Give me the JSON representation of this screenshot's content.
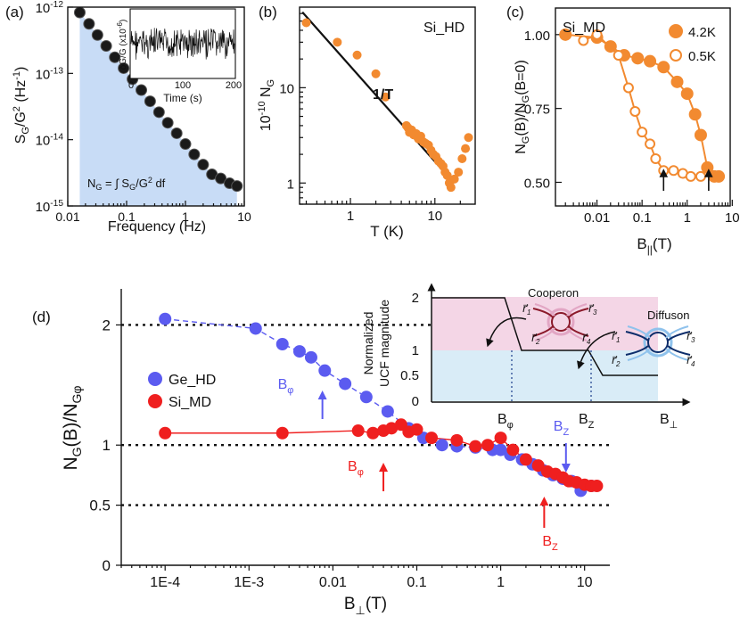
{
  "chart_data": [
    {
      "panel": "a",
      "type": "scatter",
      "panel_label": "(a)",
      "title": "",
      "xlabel": "Frequency (Hz)",
      "ylabel": "S_G/G^2 (Hz^-1)",
      "xscale": "log",
      "yscale": "log",
      "xlim": [
        0.01,
        10
      ],
      "ylim": [
        1e-15,
        1e-12
      ],
      "x_ticks": [
        {
          "v": 0.01,
          "label": "0.01"
        },
        {
          "v": 0.1,
          "label": "0.1"
        },
        {
          "v": 1,
          "label": "1"
        },
        {
          "v": 10,
          "label": "10"
        }
      ],
      "y_ticks": [
        {
          "v": 1e-15,
          "label": "10^-15"
        },
        {
          "v": 1e-14,
          "label": "10^-14"
        },
        {
          "v": 1e-13,
          "label": "10^-13"
        },
        {
          "v": 1e-12,
          "label": "10^-12"
        }
      ],
      "series": [
        {
          "name": "S_G/G^2",
          "x": [
            0.016,
            0.023,
            0.032,
            0.045,
            0.063,
            0.089,
            0.126,
            0.178,
            0.251,
            0.355,
            0.5,
            0.71,
            1.0,
            1.41,
            2.0,
            2.82,
            3.98,
            5.62,
            7.5
          ],
          "y": [
            8.3e-13,
            5.6e-13,
            3.8e-13,
            2.6e-13,
            1.75e-13,
            1.2e-13,
            8.2e-14,
            5.6e-14,
            3.8e-14,
            2.6e-14,
            1.8e-14,
            1.25e-14,
            8.6e-15,
            6e-15,
            4.2e-15,
            3e-15,
            2.6e-15,
            2.2e-15,
            2e-15
          ]
        }
      ],
      "annotation": "N_G = ∫ S_G/G^2 df",
      "inset": {
        "xlabel": "Time (s)",
        "ylabel": "δG/G (x10^-6)",
        "xlim": [
          0,
          200
        ],
        "x_ticks": [
          "0",
          "100",
          "200"
        ]
      }
    },
    {
      "panel": "b",
      "type": "scatter",
      "panel_label": "(b)",
      "title": "Si_HD",
      "xlabel": "T (K)",
      "ylabel": "10^-10 N_G",
      "xscale": "log",
      "yscale": "log",
      "xlim": [
        0.25,
        30
      ],
      "ylim": [
        0.6,
        70
      ],
      "x_ticks": [
        {
          "v": 1,
          "label": "1"
        },
        {
          "v": 10,
          "label": "10"
        }
      ],
      "y_ticks": [
        {
          "v": 1,
          "label": "1"
        },
        {
          "v": 10,
          "label": "10"
        }
      ],
      "fit_label": "1/T",
      "fit": {
        "x": [
          0.27,
          15
        ],
        "y": [
          62,
          1.12
        ]
      },
      "series": [
        {
          "name": "Si_HD",
          "x": [
            0.3,
            0.7,
            1.2,
            2.0,
            2.6,
            4.6,
            4.8,
            5.0,
            5.3,
            5.6,
            6.0,
            6.4,
            6.8,
            7.3,
            7.8,
            8.4,
            9.0,
            9.6,
            10.3,
            11.0,
            11.8,
            12.5,
            13.2,
            14.0,
            14.8,
            15.5,
            17.0,
            19.0,
            21.0,
            23.0,
            25.0
          ],
          "y": [
            48,
            30,
            22,
            14,
            8,
            4.0,
            3.8,
            3.4,
            3.6,
            3.2,
            3.3,
            2.9,
            3.1,
            2.7,
            2.6,
            2.5,
            2.2,
            2.0,
            1.9,
            1.7,
            1.6,
            1.5,
            1.3,
            1.2,
            1.0,
            0.9,
            1.1,
            1.3,
            1.8,
            2.3,
            3.0
          ]
        }
      ]
    },
    {
      "panel": "c",
      "type": "line",
      "panel_label": "(c)",
      "title": "Si_MD",
      "xlabel": "B_||(T)",
      "ylabel": "N_G(B)/N_G(B=0)",
      "xscale": "log",
      "yscale": "linear",
      "xlim": [
        0.0012,
        9
      ],
      "ylim": [
        0.42,
        1.09
      ],
      "x_ticks": [
        {
          "v": 0.01,
          "label": "0.01"
        },
        {
          "v": 0.1,
          "label": "0.1"
        },
        {
          "v": 1,
          "label": "1"
        },
        {
          "v": 10,
          "label": "10"
        }
      ],
      "y_ticks": [
        {
          "v": 0.5,
          "label": "0.50"
        },
        {
          "v": 0.75,
          "label": "0.75"
        },
        {
          "v": 1.0,
          "label": "1.00"
        }
      ],
      "legend_position": "top-right",
      "series": [
        {
          "name": "4.2K",
          "marker": "filled",
          "x": [
            0.002,
            0.01,
            0.02,
            0.04,
            0.08,
            0.15,
            0.3,
            0.6,
            1.0,
            1.5,
            2.0,
            2.8,
            4.0,
            5.0
          ],
          "y": [
            1.0,
            0.99,
            0.96,
            0.93,
            0.92,
            0.91,
            0.89,
            0.84,
            0.8,
            0.73,
            0.66,
            0.55,
            0.52,
            0.52
          ]
        },
        {
          "name": "0.5K",
          "marker": "open",
          "x": [
            0.005,
            0.01,
            0.03,
            0.05,
            0.07,
            0.1,
            0.15,
            0.2,
            0.3,
            0.5,
            0.8,
            1.2,
            2.0
          ],
          "y": [
            0.98,
            1.0,
            0.93,
            0.82,
            0.74,
            0.67,
            0.63,
            0.58,
            0.54,
            0.54,
            0.53,
            0.52,
            0.52
          ]
        }
      ],
      "arrows_at_x": [
        0.3,
        3.0
      ]
    },
    {
      "panel": "d",
      "type": "line",
      "panel_label": "(d)",
      "title": "",
      "xlabel": "B_⊥(T)",
      "ylabel": "N_G(B)/N_Gφ",
      "xscale": "log",
      "yscale": "linear",
      "xlim": [
        3e-05,
        20
      ],
      "ylim": [
        0,
        2.3
      ],
      "x_ticks": [
        {
          "v": 0.0001,
          "label": "1E-4"
        },
        {
          "v": 0.001,
          "label": "1E-3"
        },
        {
          "v": 0.01,
          "label": "0.01"
        },
        {
          "v": 0.1,
          "label": "0.1"
        },
        {
          "v": 1,
          "label": "1"
        },
        {
          "v": 10,
          "label": "10"
        }
      ],
      "y_ticks": [
        {
          "v": 0,
          "label": "0"
        },
        {
          "v": 0.5,
          "label": "0.5"
        },
        {
          "v": 1,
          "label": "1"
        },
        {
          "v": 2,
          "label": "2"
        }
      ],
      "reference_lines": [
        2,
        1,
        0.5
      ],
      "legend_position": "middle-left",
      "series": [
        {
          "name": "Ge_HD",
          "color": "#5b5bf0",
          "x": [
            0.0001,
            0.0012,
            0.0025,
            0.004,
            0.0055,
            0.008,
            0.014,
            0.025,
            0.045,
            0.08,
            0.12,
            0.2,
            0.3,
            0.5,
            0.8,
            1.0,
            1.3,
            1.8,
            2.4,
            3.2,
            4.2,
            5.5,
            7.0,
            9.0,
            12.0
          ],
          "y": [
            2.05,
            1.97,
            1.84,
            1.78,
            1.73,
            1.62,
            1.51,
            1.4,
            1.28,
            1.14,
            1.06,
            1.0,
            0.99,
            0.98,
            0.96,
            0.96,
            0.92,
            0.88,
            0.84,
            0.79,
            0.75,
            0.72,
            0.7,
            0.62,
            0.66
          ]
        },
        {
          "name": "Si_MD",
          "color": "#ef1f1f",
          "x": [
            0.0001,
            0.0025,
            0.02,
            0.03,
            0.04,
            0.05,
            0.065,
            0.08,
            0.1,
            0.15,
            0.3,
            0.5,
            0.7,
            1.0,
            1.4,
            2.0,
            2.8,
            3.6,
            4.5,
            5.5,
            6.5,
            8.0,
            10.0,
            12.0,
            14.0
          ],
          "y": [
            1.1,
            1.1,
            1.12,
            1.1,
            1.12,
            1.14,
            1.17,
            1.11,
            1.13,
            1.06,
            1.04,
            0.99,
            1.0,
            1.06,
            0.96,
            0.88,
            0.83,
            0.78,
            0.76,
            0.73,
            0.7,
            0.69,
            0.67,
            0.66,
            0.66
          ]
        }
      ],
      "annotations": [
        {
          "text": "B_φ",
          "color": "#5b5bf0",
          "x": 0.0075,
          "arrow": "up"
        },
        {
          "text": "B_φ",
          "color": "#ef1f1f",
          "x": 0.04,
          "arrow": "up"
        },
        {
          "text": "B_Z",
          "color": "#5b5bf0",
          "x": 6.0,
          "arrow": "down"
        },
        {
          "text": "B_Z",
          "color": "#ef1f1f",
          "x": 3.3,
          "arrow": "up"
        }
      ],
      "inset": {
        "ylabel_line1": "Normalized",
        "ylabel_line2": "UCF magnitude",
        "xlabel": "B_⊥",
        "y_ticks": [
          "0",
          "0.5",
          "1",
          "2"
        ],
        "x_markers": [
          "B_φ",
          "B_Z"
        ],
        "step_values": [
          2,
          1,
          0.5
        ],
        "cooperon_label": "Cooperon",
        "diffuson_label": "Diffuson",
        "colors": {
          "pink_band": "#f4d6e6",
          "blue_band": "#d9ecf7",
          "cooperon": "#8b1a2b",
          "diffuson": "#0d2d6b"
        }
      }
    }
  ]
}
